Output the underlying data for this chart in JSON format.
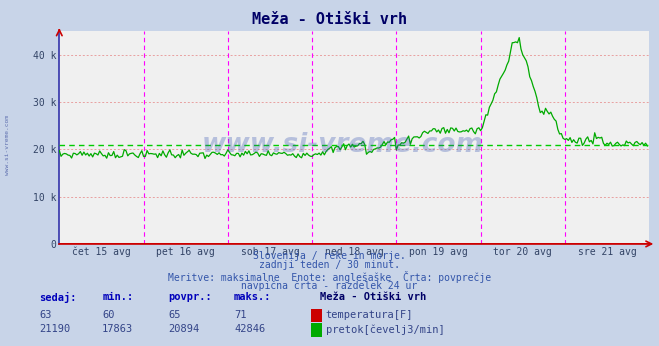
{
  "title": "Meža - Otiški vrh",
  "bg_color": "#c8d4e8",
  "plot_bg_color": "#f0f0f0",
  "grid_color": "#e8a0a0",
  "vline_color": "#ff00ff",
  "x_labels": [
    "čet 15 avg",
    "pet 16 avg",
    "sob 17 avg",
    "ned 18 avg",
    "pon 19 avg",
    "tor 20 avg",
    "sre 21 avg"
  ],
  "y_ticks": [
    0,
    10000,
    20000,
    30000,
    40000
  ],
  "y_tick_labels": [
    "0",
    "10 k",
    "20 k",
    "30 k",
    "40 k"
  ],
  "ylim": [
    0,
    45000
  ],
  "xlim": [
    0,
    336
  ],
  "flow_avg": 20894,
  "flow_color": "#00aa00",
  "temp_color": "#cc0000",
  "avg_line_color": "#00cc00",
  "watermark": "www.si-vreme.com",
  "watermark_color": "#3050b0",
  "left_label": "www.si-vreme.com",
  "subtitle1": "Slovenija / reke in morje.",
  "subtitle2": "zadnji teden / 30 minut.",
  "subtitle3": "Meritve: maksimalne  Enote: anglešaške  Črta: povprečje",
  "subtitle4": "navpična črta - razdelek 24 ur",
  "table_headers": [
    "sedaj:",
    "min.:",
    "povpr.:",
    "maks.:"
  ],
  "temp_row": [
    "63",
    "60",
    "65",
    "71"
  ],
  "flow_row": [
    "21190",
    "17863",
    "20894",
    "42846"
  ],
  "legend_title": "Meža - Otiški vrh",
  "legend_temp": "temperatura[F]",
  "legend_flow": "pretok[čevelj3/min]",
  "n_points": 336,
  "days": 7,
  "pts_per_day": 48
}
